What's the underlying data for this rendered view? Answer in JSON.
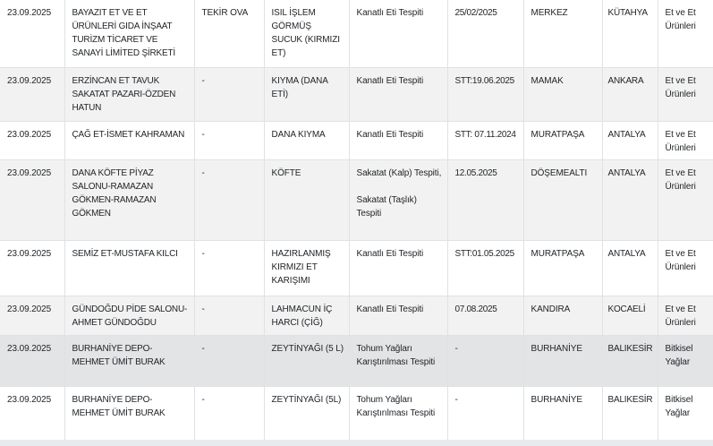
{
  "table": {
    "columns": [
      {
        "key": "date",
        "name": "inspection-date"
      },
      {
        "key": "company",
        "name": "company-name"
      },
      {
        "key": "brand",
        "name": "brand"
      },
      {
        "key": "product",
        "name": "product-name"
      },
      {
        "key": "finding",
        "name": "adulteration-finding"
      },
      {
        "key": "date_info",
        "name": "lot-or-expiry-date"
      },
      {
        "key": "district",
        "name": "district"
      },
      {
        "key": "province",
        "name": "province"
      },
      {
        "key": "category",
        "name": "product-category"
      }
    ],
    "rows": [
      {
        "date": "23.09.2025",
        "company": "BAYAZIT ET VE ET ÜRÜNLERİ GIDA İNŞAAT TURİZM TİCARET VE SANAYİ LİMİTED ŞİRKETİ",
        "brand": "TEKİR OVA",
        "product": "ISIL İŞLEM GÖRMÜŞ SUCUK (KIRMIZI ET)",
        "finding": "Kanatlı Eti Tespiti",
        "date_info": "25/02/2025",
        "district": "MERKEZ",
        "province": "KÜTAHYA",
        "category": "Et ve Et Ürünleri"
      },
      {
        "date": "23.09.2025",
        "company": "ERZİNCAN ET TAVUK SAKATAT PAZARI-ÖZDEN HATUN",
        "brand": "-",
        "product": "KIYMA (DANA ETİ)",
        "finding": "Kanatlı Eti Tespiti",
        "date_info": "STT:19.06.2025",
        "district": "MAMAK",
        "province": "ANKARA",
        "category": "Et ve Et Ürünleri"
      },
      {
        "date": "23.09.2025",
        "company": "ÇAĞ ET-İSMET KAHRAMAN",
        "brand": "-",
        "product": "DANA KIYMA",
        "finding": "Kanatlı Eti Tespiti",
        "date_info": "STT: 07.11.2024",
        "district": "MURATPAŞA",
        "province": "ANTALYA",
        "category": "Et ve Et Ürünleri"
      },
      {
        "date": "23.09.2025",
        "company": "DANA KÖFTE PİYAZ SALONU-RAMAZAN GÖKMEN-RAMAZAN GÖKMEN",
        "brand": "-",
        "product": "KÖFTE",
        "finding": "Sakatat (Kalp) Tespiti,\n\nSakatat (Taşlık) Tespiti",
        "date_info": "12.05.2025",
        "district": "DÖŞEMEALTI",
        "province": "ANTALYA",
        "category": "Et ve Et Ürünleri"
      },
      {
        "date": "23.09.2025",
        "company": "SEMİZ ET-MUSTAFA KILCI",
        "brand": "-",
        "product": "HAZIRLANMIŞ KIRMIZI ET KARIŞIMI",
        "finding": "Kanatlı Eti Tespiti",
        "date_info": "STT:01.05.2025",
        "district": "MURATPAŞA",
        "province": "ANTALYA",
        "category": "Et ve Et Ürünleri"
      },
      {
        "date": "23.09.2025",
        "company": "GÜNDOĞDU PİDE SALONU-AHMET GÜNDOĞDU",
        "brand": "-",
        "product": "LAHMACUN İÇ HARCI (ÇİĞ)",
        "finding": "Kanatlı Eti Tespiti",
        "date_info": "07.08.2025",
        "district": "KANDIRA",
        "province": "KOCAELİ",
        "category": "Et ve Et Ürünleri"
      },
      {
        "date": "23.09.2025",
        "company": "BURHANİYE DEPO-MEHMET ÜMİT BURAK",
        "brand": "-",
        "product": "ZEYTİNYAĞI (5 L)",
        "finding": "Tohum Yağları Karıştırılması Tespiti",
        "date_info": "-",
        "district": "BURHANİYE",
        "province": "BALIKESİR",
        "category": "Bitkisel Yağlar"
      },
      {
        "date": "23.09.2025",
        "company": "BURHANİYE DEPO-MEHMET ÜMİT BURAK",
        "brand": "-",
        "product": "ZEYTİNYAĞI (5L)",
        "finding": "Tohum Yağları Karıştırılması Tespiti",
        "date_info": "-",
        "district": "BURHANİYE",
        "province": "BALIKESİR",
        "category": "Bitkisel Yağlar"
      }
    ]
  },
  "colors": {
    "text": "#212529",
    "cell_border": "#dee2e6",
    "row_stripe": "#f2f2f2",
    "row_hover": "#e3e4e6",
    "bottom_strip": "#e8ebee"
  }
}
